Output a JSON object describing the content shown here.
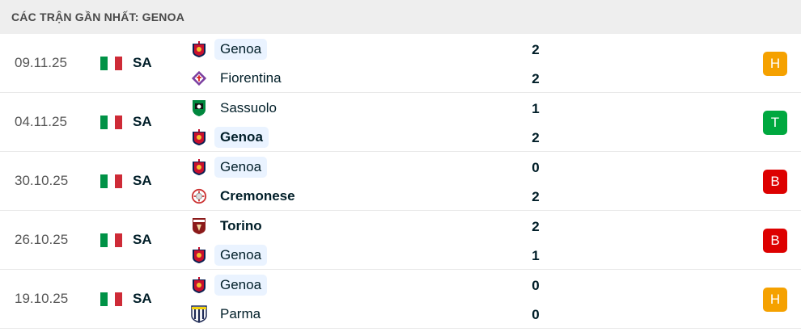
{
  "title": "CÁC TRẬN GẦN NHẤT: GENOA",
  "colors": {
    "draw": "#f5a100",
    "win": "#00a83f",
    "loss": "#dd0000",
    "italy_green": "#009246",
    "italy_red": "#ce2b37"
  },
  "matches": [
    {
      "date": "09.11.25",
      "league": "SA",
      "home": {
        "name": "Genoa",
        "score": "2",
        "logo": "genoa-crest",
        "highlight": true,
        "bold": false
      },
      "away": {
        "name": "Fiorentina",
        "score": "2",
        "logo": "fiorentina-crest",
        "highlight": false,
        "bold": false
      },
      "result": "H",
      "result_type": "draw"
    },
    {
      "date": "04.11.25",
      "league": "SA",
      "home": {
        "name": "Sassuolo",
        "score": "1",
        "logo": "sassuolo-crest",
        "highlight": false,
        "bold": false
      },
      "away": {
        "name": "Genoa",
        "score": "2",
        "logo": "genoa-crest",
        "highlight": true,
        "bold": true
      },
      "result": "T",
      "result_type": "win"
    },
    {
      "date": "30.10.25",
      "league": "SA",
      "home": {
        "name": "Genoa",
        "score": "0",
        "logo": "genoa-crest",
        "highlight": true,
        "bold": false
      },
      "away": {
        "name": "Cremonese",
        "score": "2",
        "logo": "cremonese-crest",
        "highlight": false,
        "bold": true
      },
      "result": "B",
      "result_type": "loss"
    },
    {
      "date": "26.10.25",
      "league": "SA",
      "home": {
        "name": "Torino",
        "score": "2",
        "logo": "torino-crest",
        "highlight": false,
        "bold": true
      },
      "away": {
        "name": "Genoa",
        "score": "1",
        "logo": "genoa-crest",
        "highlight": true,
        "bold": false
      },
      "result": "B",
      "result_type": "loss"
    },
    {
      "date": "19.10.25",
      "league": "SA",
      "home": {
        "name": "Genoa",
        "score": "0",
        "logo": "genoa-crest",
        "highlight": true,
        "bold": false
      },
      "away": {
        "name": "Parma",
        "score": "0",
        "logo": "parma-crest",
        "highlight": false,
        "bold": false
      },
      "result": "H",
      "result_type": "draw"
    }
  ]
}
